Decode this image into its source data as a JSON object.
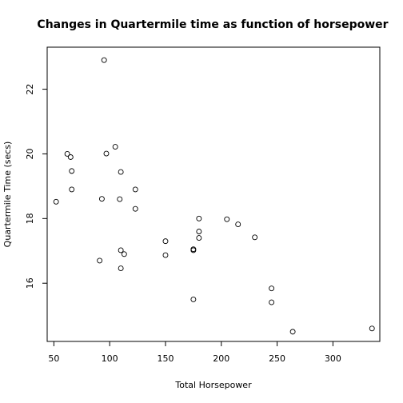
{
  "chart_data": {
    "type": "scatter",
    "title": "Changes in Quartermile time as function of horsepower",
    "xlabel": "Total Horsepower",
    "ylabel": "Quartermile Time (secs)",
    "xlim": [
      44,
      342
    ],
    "ylim": [
      14.2,
      23.3
    ],
    "xticks": [
      50,
      100,
      150,
      200,
      250,
      300
    ],
    "yticks": [
      16,
      18,
      20,
      22
    ],
    "grid": false,
    "legend": "none",
    "points": [
      {
        "x": 110,
        "y": 16.46
      },
      {
        "x": 110,
        "y": 17.02
      },
      {
        "x": 93,
        "y": 18.61
      },
      {
        "x": 110,
        "y": 19.44
      },
      {
        "x": 175,
        "y": 17.02
      },
      {
        "x": 105,
        "y": 20.22
      },
      {
        "x": 245,
        "y": 15.84
      },
      {
        "x": 62,
        "y": 20.0
      },
      {
        "x": 95,
        "y": 22.9
      },
      {
        "x": 123,
        "y": 18.3
      },
      {
        "x": 123,
        "y": 18.9
      },
      {
        "x": 180,
        "y": 17.4
      },
      {
        "x": 180,
        "y": 17.6
      },
      {
        "x": 180,
        "y": 18.0
      },
      {
        "x": 205,
        "y": 17.98
      },
      {
        "x": 215,
        "y": 17.82
      },
      {
        "x": 230,
        "y": 17.42
      },
      {
        "x": 66,
        "y": 19.47
      },
      {
        "x": 52,
        "y": 18.52
      },
      {
        "x": 65,
        "y": 19.9
      },
      {
        "x": 97,
        "y": 20.01
      },
      {
        "x": 150,
        "y": 16.87
      },
      {
        "x": 150,
        "y": 17.3
      },
      {
        "x": 245,
        "y": 15.41
      },
      {
        "x": 175,
        "y": 17.05
      },
      {
        "x": 66,
        "y": 18.9
      },
      {
        "x": 91,
        "y": 16.7
      },
      {
        "x": 113,
        "y": 16.9
      },
      {
        "x": 264,
        "y": 14.5
      },
      {
        "x": 175,
        "y": 15.5
      },
      {
        "x": 335,
        "y": 14.6
      },
      {
        "x": 109,
        "y": 18.6
      }
    ]
  }
}
